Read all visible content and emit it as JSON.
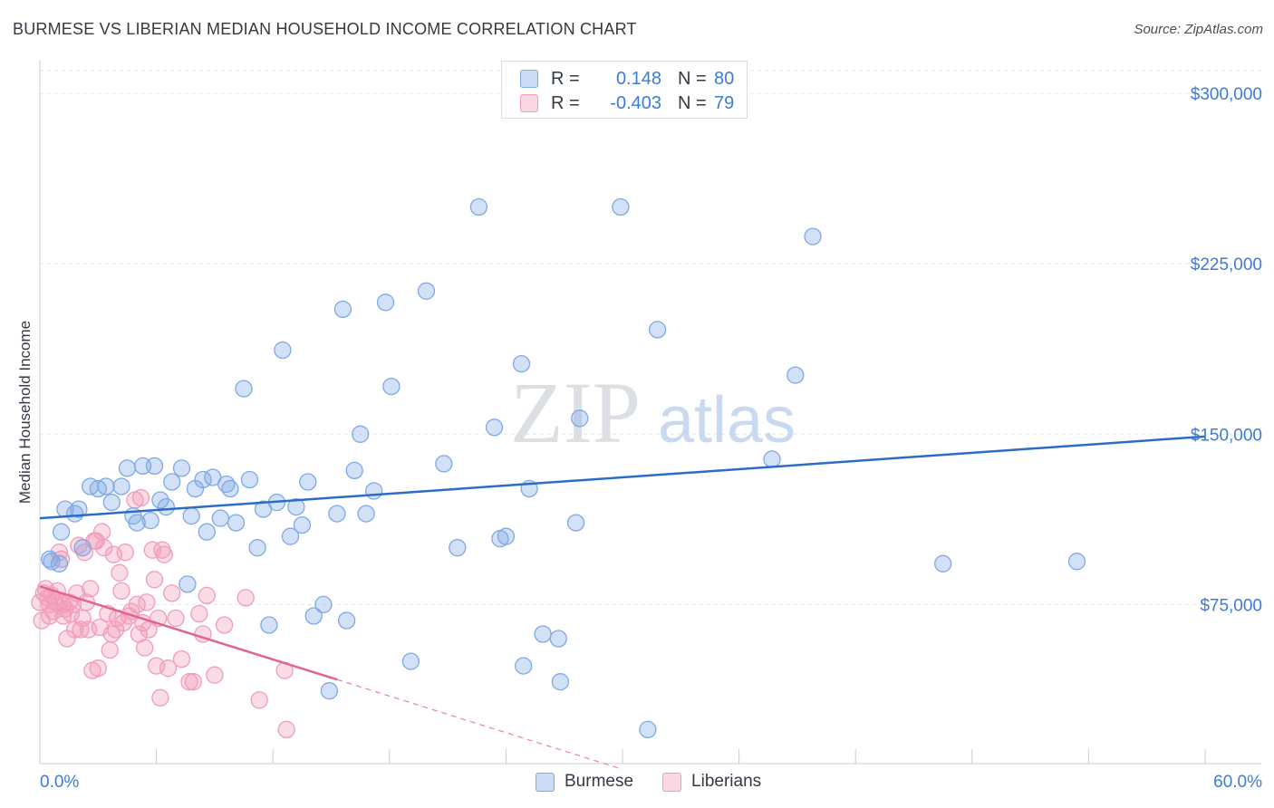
{
  "title": "BURMESE VS LIBERIAN MEDIAN HOUSEHOLD INCOME CORRELATION CHART",
  "source": "Source: ZipAtlas.com",
  "watermark": {
    "zip": "ZIP",
    "atlas": "atlas"
  },
  "legend": {
    "rows": [
      {
        "r_label": "R =",
        "r_value": "0.148",
        "n_label": "N =",
        "n_value": "80",
        "color": "#7fa8e6"
      },
      {
        "r_label": "R =",
        "r_value": "-0.403",
        "n_label": "N =",
        "n_value": "79",
        "color": "#f29cb7"
      }
    ]
  },
  "bottom_legend": [
    "Burmese",
    "Liberians"
  ],
  "chart_data": {
    "type": "scatter",
    "title": "BURMESE VS LIBERIAN MEDIAN HOUSEHOLD INCOME CORRELATION CHART",
    "xlabel": "",
    "ylabel": "Median Household Income",
    "xlim": [
      0,
      60
    ],
    "ylim": [
      5000,
      310000
    ],
    "x_tick_labels": [
      "0.0%",
      "60.0%"
    ],
    "y_ticks": [
      75000,
      150000,
      225000,
      300000
    ],
    "y_tick_labels": [
      "$75,000",
      "$150,000",
      "$225,000",
      "$300,000"
    ],
    "grid": true,
    "legend_position": "top-center",
    "colors": {
      "burmese": "#7fa8e6",
      "burmese_line": "#2b6cc8",
      "liberians": "#f29cb7",
      "liberians_line": "#e0648f",
      "axis_text": "#3d7bd6"
    },
    "series": [
      {
        "name": "Burmese",
        "r": 0.148,
        "n": 80,
        "trend": {
          "x": [
            0,
            60
          ],
          "y": [
            113000,
            149000
          ]
        },
        "points": [
          [
            0.5,
            95000
          ],
          [
            0.6,
            94000
          ],
          [
            1.0,
            93000
          ],
          [
            1.1,
            107000
          ],
          [
            1.3,
            117000
          ],
          [
            1.8,
            115000
          ],
          [
            2.0,
            117000
          ],
          [
            2.2,
            100000
          ],
          [
            2.6,
            127000
          ],
          [
            3.0,
            126000
          ],
          [
            3.4,
            127000
          ],
          [
            3.7,
            120000
          ],
          [
            4.2,
            127000
          ],
          [
            4.5,
            135000
          ],
          [
            4.8,
            114000
          ],
          [
            5.0,
            111000
          ],
          [
            5.3,
            136000
          ],
          [
            5.7,
            112000
          ],
          [
            5.9,
            136000
          ],
          [
            6.2,
            121000
          ],
          [
            6.5,
            118000
          ],
          [
            6.8,
            129000
          ],
          [
            7.3,
            135000
          ],
          [
            7.6,
            84000
          ],
          [
            7.8,
            114000
          ],
          [
            8.0,
            126000
          ],
          [
            8.4,
            130000
          ],
          [
            8.6,
            107000
          ],
          [
            8.9,
            131000
          ],
          [
            9.3,
            113000
          ],
          [
            9.6,
            128000
          ],
          [
            9.8,
            126000
          ],
          [
            10.1,
            111000
          ],
          [
            10.5,
            170000
          ],
          [
            10.8,
            130000
          ],
          [
            11.2,
            100000
          ],
          [
            11.5,
            117000
          ],
          [
            11.8,
            66000
          ],
          [
            12.2,
            120000
          ],
          [
            12.5,
            187000
          ],
          [
            12.9,
            105000
          ],
          [
            13.2,
            118000
          ],
          [
            13.5,
            110000
          ],
          [
            13.8,
            129000
          ],
          [
            14.1,
            70000
          ],
          [
            14.6,
            75000
          ],
          [
            14.9,
            37000
          ],
          [
            15.3,
            115000
          ],
          [
            15.6,
            205000
          ],
          [
            15.8,
            68000
          ],
          [
            16.2,
            134000
          ],
          [
            16.5,
            150000
          ],
          [
            16.8,
            115000
          ],
          [
            17.2,
            125000
          ],
          [
            17.8,
            208000
          ],
          [
            18.1,
            171000
          ],
          [
            19.1,
            50000
          ],
          [
            19.9,
            213000
          ],
          [
            20.8,
            137000
          ],
          [
            21.5,
            100000
          ],
          [
            22.6,
            250000
          ],
          [
            23.4,
            153000
          ],
          [
            23.7,
            104000
          ],
          [
            24.0,
            105000
          ],
          [
            24.8,
            181000
          ],
          [
            24.9,
            48000
          ],
          [
            25.2,
            126000
          ],
          [
            25.9,
            62000
          ],
          [
            26.7,
            60000
          ],
          [
            26.8,
            41000
          ],
          [
            27.6,
            111000
          ],
          [
            27.8,
            157000
          ],
          [
            29.9,
            250000
          ],
          [
            31.3,
            20000
          ],
          [
            31.8,
            196000
          ],
          [
            37.7,
            139000
          ],
          [
            38.9,
            176000
          ],
          [
            39.8,
            237000
          ],
          [
            46.5,
            93000
          ],
          [
            53.4,
            94000
          ]
        ]
      },
      {
        "name": "Liberians",
        "r": -0.403,
        "n": 79,
        "trend": {
          "x": [
            0,
            15.3
          ],
          "y": [
            83000,
            42000
          ]
        },
        "trend_extension": {
          "x": [
            15.3,
            30
          ],
          "y": [
            42000,
            2500
          ]
        },
        "points": [
          [
            0.0,
            76000
          ],
          [
            0.1,
            68000
          ],
          [
            0.2,
            80000
          ],
          [
            0.3,
            82000
          ],
          [
            0.4,
            78000
          ],
          [
            0.5,
            75000
          ],
          [
            0.5,
            70000
          ],
          [
            0.6,
            79000
          ],
          [
            0.7,
            72000
          ],
          [
            0.8,
            76000
          ],
          [
            0.9,
            81000
          ],
          [
            1.0,
            76000
          ],
          [
            1.0,
            98000
          ],
          [
            1.1,
            95000
          ],
          [
            1.2,
            75000
          ],
          [
            1.2,
            70000
          ],
          [
            1.3,
            73000
          ],
          [
            1.4,
            60000
          ],
          [
            1.5,
            76000
          ],
          [
            1.6,
            71000
          ],
          [
            1.7,
            75000
          ],
          [
            1.8,
            64000
          ],
          [
            1.9,
            80000
          ],
          [
            2.0,
            101000
          ],
          [
            2.1,
            64000
          ],
          [
            2.2,
            69000
          ],
          [
            2.3,
            98000
          ],
          [
            2.4,
            76000
          ],
          [
            2.5,
            64000
          ],
          [
            2.6,
            82000
          ],
          [
            2.7,
            46000
          ],
          [
            2.8,
            103000
          ],
          [
            2.9,
            103000
          ],
          [
            3.0,
            47000
          ],
          [
            3.1,
            65000
          ],
          [
            3.2,
            107000
          ],
          [
            3.3,
            100000
          ],
          [
            3.5,
            71000
          ],
          [
            3.6,
            55000
          ],
          [
            3.7,
            62000
          ],
          [
            3.8,
            97000
          ],
          [
            3.9,
            64000
          ],
          [
            4.0,
            69000
          ],
          [
            4.1,
            89000
          ],
          [
            4.2,
            81000
          ],
          [
            4.3,
            67000
          ],
          [
            4.4,
            98000
          ],
          [
            4.6,
            70000
          ],
          [
            4.7,
            72000
          ],
          [
            4.9,
            121000
          ],
          [
            5.0,
            75000
          ],
          [
            5.1,
            62000
          ],
          [
            5.2,
            122000
          ],
          [
            5.3,
            67000
          ],
          [
            5.4,
            56000
          ],
          [
            5.5,
            76000
          ],
          [
            5.6,
            64000
          ],
          [
            5.8,
            99000
          ],
          [
            5.9,
            86000
          ],
          [
            6.0,
            48000
          ],
          [
            6.1,
            69000
          ],
          [
            6.2,
            34000
          ],
          [
            6.3,
            99000
          ],
          [
            6.4,
            97000
          ],
          [
            6.6,
            47000
          ],
          [
            6.8,
            80000
          ],
          [
            7.0,
            69000
          ],
          [
            7.3,
            51000
          ],
          [
            7.7,
            41000
          ],
          [
            7.9,
            41000
          ],
          [
            8.2,
            71000
          ],
          [
            8.4,
            62000
          ],
          [
            8.6,
            79000
          ],
          [
            9.0,
            44000
          ],
          [
            9.5,
            66000
          ],
          [
            10.6,
            78000
          ],
          [
            11.3,
            33000
          ],
          [
            12.7,
            20000
          ],
          [
            12.6,
            46000
          ]
        ]
      }
    ]
  }
}
